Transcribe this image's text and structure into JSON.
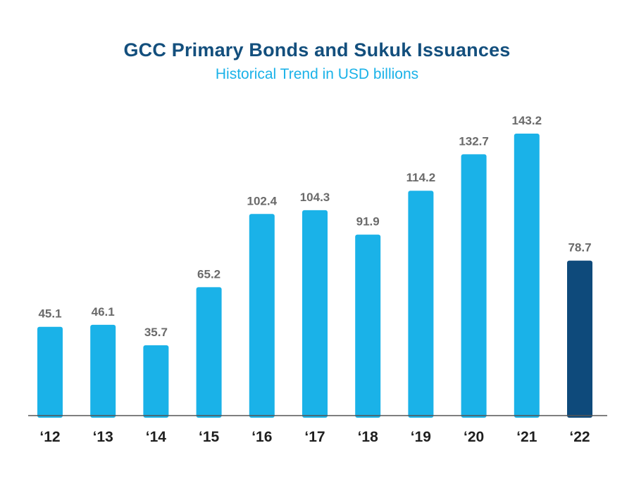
{
  "chart_data": {
    "type": "bar",
    "title": "GCC Primary Bonds and Sukuk Issuances",
    "subtitle": "Historical Trend in USD billions",
    "categories": [
      "‘12",
      "‘13",
      "‘14",
      "‘15",
      "‘16",
      "‘17",
      "‘18",
      "‘19",
      "‘20",
      "‘21",
      "‘22"
    ],
    "values": [
      45.1,
      46.1,
      35.7,
      65.2,
      102.4,
      104.3,
      91.9,
      114.2,
      132.7,
      143.2,
      78.7
    ],
    "data_labels": [
      "45.1",
      "46.1",
      "35.7",
      "65.2",
      "102.4",
      "104.3",
      "91.9",
      "114.2",
      "132.7",
      "143.2",
      "78.7"
    ],
    "ylim": [
      0,
      143.2
    ],
    "grid": false,
    "legend": "none",
    "colors": {
      "bar": "#1ab2e8",
      "highlight_bar": "#0e4a7b",
      "title": "#134f7d",
      "subtitle": "#1ab2e8",
      "value_label": "#6a6a6a",
      "axis": "#555555"
    },
    "highlight_index": 10
  }
}
